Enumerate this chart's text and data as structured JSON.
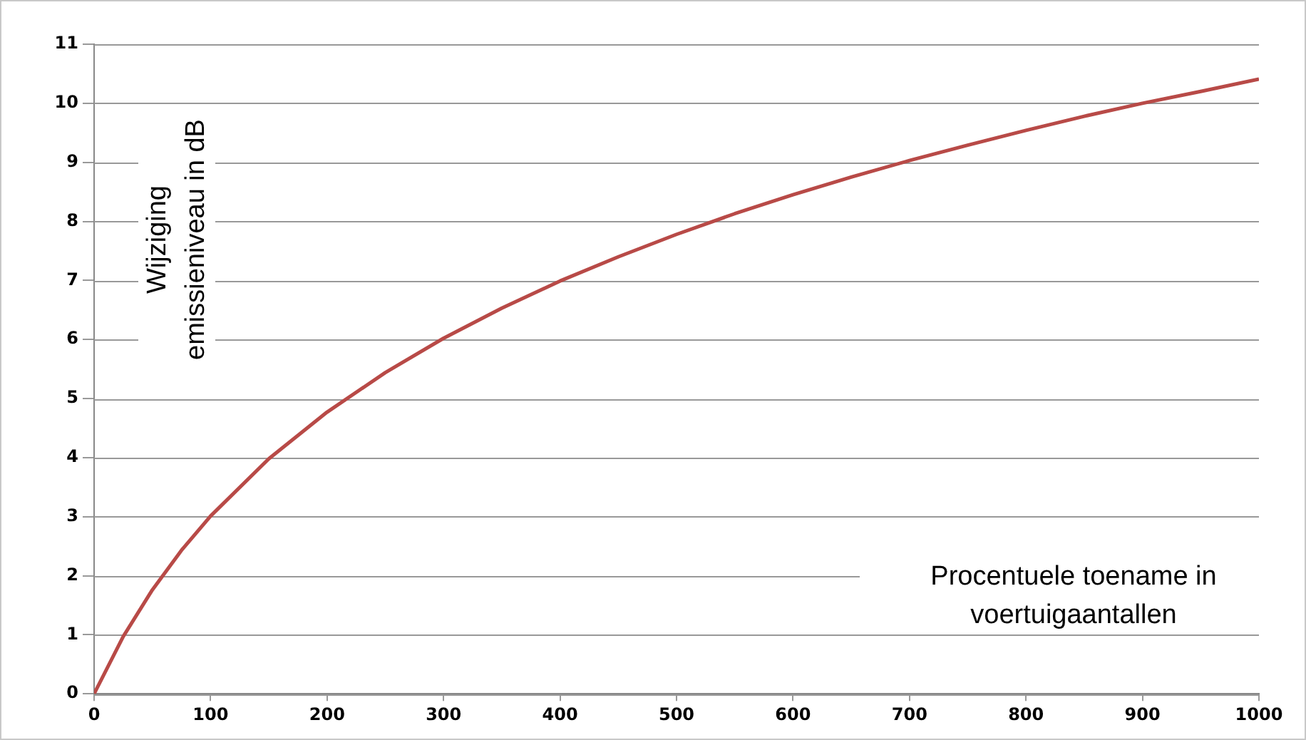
{
  "chart_data": {
    "type": "line",
    "xlabel": "Procentuele toename in voertuigaantallen",
    "ylabel": "Wijziging emissieniveau in dB",
    "x": [
      0,
      25,
      50,
      75,
      100,
      150,
      200,
      250,
      300,
      350,
      400,
      450,
      500,
      550,
      600,
      650,
      700,
      750,
      800,
      850,
      900,
      950,
      1000
    ],
    "values": [
      0,
      0.97,
      1.76,
      2.43,
      3.01,
      3.98,
      4.77,
      5.44,
      6.02,
      6.53,
      6.99,
      7.4,
      7.78,
      8.13,
      8.45,
      8.75,
      9.03,
      9.29,
      9.54,
      9.78,
      10,
      10.2,
      10.41
    ],
    "color": "#b84a47",
    "xlim": [
      0,
      1000
    ],
    "ylim": [
      0,
      11
    ],
    "xticks": [
      0,
      100,
      200,
      300,
      400,
      500,
      600,
      700,
      800,
      900,
      1000
    ],
    "yticks": [
      0,
      1,
      2,
      3,
      4,
      5,
      6,
      7,
      8,
      9,
      10,
      11
    ],
    "grid": "y"
  }
}
